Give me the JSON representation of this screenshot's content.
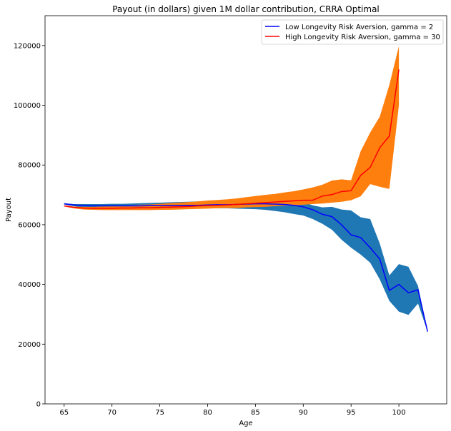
{
  "chart_data": {
    "type": "line",
    "title": "Payout (in dollars) given 1M dollar contribution, CRRA Optimal",
    "xlabel": "Age",
    "ylabel": "Payout",
    "xlim": [
      63.0,
      105.0
    ],
    "ylim": [
      0,
      130000
    ],
    "xticks": [
      65,
      70,
      75,
      80,
      85,
      90,
      95,
      100
    ],
    "yticks": [
      0,
      20000,
      40000,
      60000,
      80000,
      100000,
      120000
    ],
    "grid": false,
    "legend_position": "top-right",
    "series": [
      {
        "name": "Low Longevity Risk Aversion, gamma = 2",
        "color": "#0000ff",
        "band_color": "#1f77b4",
        "x": [
          65,
          66,
          67,
          68,
          69,
          70,
          71,
          72,
          73,
          74,
          75,
          76,
          77,
          78,
          79,
          80,
          81,
          82,
          83,
          84,
          85,
          86,
          87,
          88,
          89,
          90,
          91,
          92,
          93,
          94,
          95,
          96,
          97,
          98,
          99,
          100,
          101,
          102,
          103
        ],
        "y": [
          67000,
          66600,
          66400,
          66300,
          66300,
          66300,
          66300,
          66300,
          66300,
          66400,
          66400,
          66400,
          66500,
          66500,
          66500,
          66600,
          66700,
          66700,
          66800,
          66900,
          67000,
          67000,
          66900,
          66800,
          66500,
          66000,
          65000,
          63500,
          62700,
          60000,
          56600,
          55700,
          52300,
          48500,
          38000,
          40000,
          37200,
          38200,
          24200
        ],
        "lower": [
          66800,
          66200,
          65800,
          65600,
          65600,
          65600,
          65600,
          65600,
          65600,
          65600,
          65600,
          65600,
          65500,
          65500,
          65500,
          65500,
          65500,
          65500,
          65400,
          65300,
          65200,
          65000,
          64600,
          64200,
          63600,
          63100,
          61900,
          60300,
          58300,
          55000,
          52300,
          50000,
          47300,
          41700,
          34500,
          30900,
          29800,
          33600,
          24200
        ],
        "upper": [
          67200,
          66900,
          66900,
          66900,
          66900,
          67000,
          67000,
          67100,
          67200,
          67300,
          67400,
          67500,
          67600,
          67700,
          67800,
          67900,
          68000,
          68100,
          68200,
          68300,
          68300,
          68400,
          68400,
          68300,
          68000,
          67500,
          66500,
          65800,
          66000,
          65100,
          64800,
          62500,
          61900,
          53700,
          43000,
          46800,
          45900,
          39500,
          24200
        ]
      },
      {
        "name": "High Longevity Risk Aversion, gamma = 30",
        "color": "#ff0000",
        "band_color": "#ff7f0e",
        "x": [
          65,
          66,
          67,
          68,
          69,
          70,
          71,
          72,
          73,
          74,
          75,
          76,
          77,
          78,
          79,
          80,
          81,
          82,
          83,
          84,
          85,
          86,
          87,
          88,
          89,
          90,
          91,
          92,
          93,
          94,
          95,
          96,
          97,
          98,
          99,
          100
        ],
        "y": [
          66300,
          65800,
          65600,
          65500,
          65500,
          65500,
          65600,
          65600,
          65700,
          65700,
          65800,
          65900,
          66000,
          66100,
          66300,
          66400,
          66500,
          66600,
          66800,
          67000,
          67200,
          67400,
          67600,
          67800,
          68000,
          68200,
          68200,
          69600,
          70100,
          71100,
          71400,
          76500,
          79200,
          85800,
          89700,
          112000
        ],
        "lower": [
          66100,
          65500,
          65100,
          65000,
          64900,
          64900,
          64900,
          64900,
          64900,
          64900,
          65000,
          65000,
          65100,
          65200,
          65300,
          65400,
          65500,
          65600,
          65600,
          65800,
          65900,
          66000,
          66200,
          66400,
          66500,
          66700,
          66900,
          67100,
          67400,
          67700,
          68200,
          69500,
          73600,
          72700,
          72000,
          100000
        ],
        "upper": [
          66500,
          66100,
          66000,
          66000,
          66100,
          66200,
          66400,
          66500,
          66700,
          66800,
          67000,
          67200,
          67400,
          67600,
          67800,
          68100,
          68300,
          68500,
          68800,
          69200,
          69600,
          70000,
          70300,
          70800,
          71200,
          71800,
          72500,
          73400,
          74800,
          75200,
          74900,
          84600,
          90900,
          96200,
          106800,
          119800
        ]
      }
    ]
  }
}
